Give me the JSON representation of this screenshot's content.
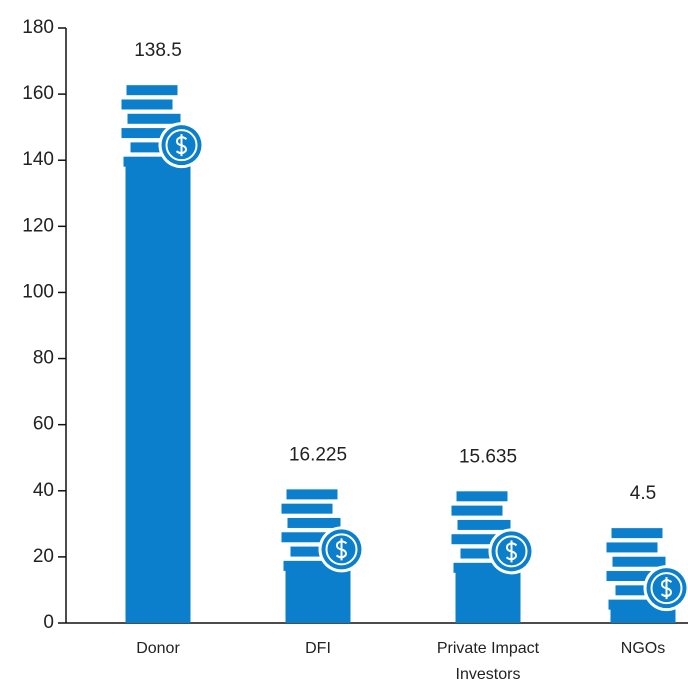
{
  "chart_data": {
    "type": "bar",
    "categories": [
      "Donor",
      "DFI",
      "Private Impact Investors",
      "NGOs"
    ],
    "values": [
      138.5,
      16.225,
      15.635,
      4.5
    ],
    "color": "#0b7fcc",
    "ylim": [
      0,
      180
    ],
    "yticks": [
      0,
      20,
      40,
      60,
      80,
      100,
      120,
      140,
      160,
      180
    ],
    "grid": false
  }
}
